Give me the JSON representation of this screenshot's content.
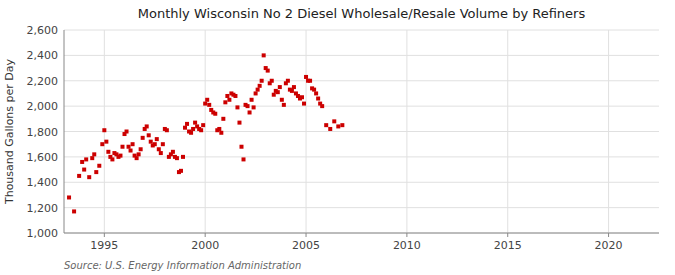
{
  "chart_data": {
    "type": "scatter",
    "title": "Monthly Wisconsin No 2 Diesel Wholesale/Resale Volume by Refiners",
    "ylabel": "Thousand Gallons per Day",
    "source": "Source: U.S. Energy Information Administration",
    "color": "#cc0000",
    "marker": "square",
    "grid": true,
    "xlim": [
      1993.0,
      2022.5
    ],
    "xticks": [
      1995,
      2000,
      2005,
      2010,
      2015,
      2020
    ],
    "ylim": [
      1000,
      2600
    ],
    "yticks": [
      {
        "value": 1000,
        "label": "1,000"
      },
      {
        "value": 1200,
        "label": "1,200"
      },
      {
        "value": 1400,
        "label": "1,400"
      },
      {
        "value": 1600,
        "label": "1,600"
      },
      {
        "value": 1800,
        "label": "1,800"
      },
      {
        "value": 2000,
        "label": "2,000"
      },
      {
        "value": 2200,
        "label": "2,200"
      },
      {
        "value": 2400,
        "label": "2,400"
      },
      {
        "value": 2600,
        "label": "2,600"
      }
    ],
    "x": [
      1993.25,
      1993.5,
      1993.75,
      1993.9,
      1994.0,
      1994.1,
      1994.25,
      1994.4,
      1994.5,
      1994.6,
      1994.75,
      1994.9,
      1995.0,
      1995.1,
      1995.2,
      1995.3,
      1995.4,
      1995.5,
      1995.6,
      1995.7,
      1995.8,
      1995.9,
      1996.0,
      1996.1,
      1996.2,
      1996.3,
      1996.4,
      1996.5,
      1996.6,
      1996.7,
      1996.8,
      1996.9,
      1997.0,
      1997.1,
      1997.2,
      1997.3,
      1997.4,
      1997.5,
      1997.6,
      1997.7,
      1997.8,
      1997.9,
      1998.0,
      1998.1,
      1998.2,
      1998.3,
      1998.4,
      1998.5,
      1998.6,
      1998.7,
      1998.8,
      1998.9,
      1999.0,
      1999.1,
      1999.2,
      1999.3,
      1999.4,
      1999.5,
      1999.6,
      1999.7,
      1999.8,
      1999.9,
      2000.0,
      2000.1,
      2000.2,
      2000.3,
      2000.4,
      2000.5,
      2000.6,
      2000.7,
      2000.8,
      2000.9,
      2001.0,
      2001.1,
      2001.2,
      2001.3,
      2001.4,
      2001.5,
      2001.6,
      2001.7,
      2001.8,
      2001.9,
      2002.0,
      2002.1,
      2002.2,
      2002.3,
      2002.4,
      2002.5,
      2002.6,
      2002.7,
      2002.8,
      2002.9,
      2003.0,
      2003.1,
      2003.2,
      2003.3,
      2003.4,
      2003.5,
      2003.6,
      2003.7,
      2003.8,
      2003.9,
      2004.0,
      2004.1,
      2004.2,
      2004.3,
      2004.4,
      2004.5,
      2004.6,
      2004.7,
      2004.8,
      2004.9,
      2005.0,
      2005.1,
      2005.2,
      2005.3,
      2005.4,
      2005.5,
      2005.6,
      2005.7,
      2005.8,
      2006.0,
      2006.2,
      2006.4,
      2006.6,
      2006.8
    ],
    "values": [
      1280,
      1170,
      1450,
      1560,
      1500,
      1580,
      1440,
      1590,
      1620,
      1480,
      1530,
      1700,
      1810,
      1720,
      1640,
      1600,
      1580,
      1630,
      1620,
      1600,
      1610,
      1680,
      1780,
      1800,
      1680,
      1650,
      1700,
      1610,
      1590,
      1620,
      1660,
      1750,
      1820,
      1840,
      1770,
      1720,
      1690,
      1700,
      1740,
      1660,
      1630,
      1700,
      1820,
      1810,
      1600,
      1620,
      1640,
      1600,
      1590,
      1480,
      1490,
      1600,
      1830,
      1860,
      1800,
      1790,
      1820,
      1870,
      1840,
      1820,
      1810,
      1850,
      2020,
      2050,
      2010,
      1970,
      1950,
      1940,
      1810,
      1820,
      1790,
      1900,
      2030,
      2080,
      2050,
      2100,
      2090,
      2080,
      1990,
      1870,
      1680,
      1580,
      2010,
      2000,
      1950,
      2050,
      1990,
      2100,
      2130,
      2160,
      2200,
      2400,
      2300,
      2280,
      2180,
      2200,
      2090,
      2120,
      2110,
      2150,
      2050,
      2010,
      2180,
      2200,
      2130,
      2120,
      2150,
      2100,
      2080,
      2060,
      2070,
      2020,
      2230,
      2200,
      2200,
      2140,
      2130,
      2100,
      2060,
      2020,
      2000,
      1850,
      1820,
      1880,
      1840,
      1850
    ]
  }
}
